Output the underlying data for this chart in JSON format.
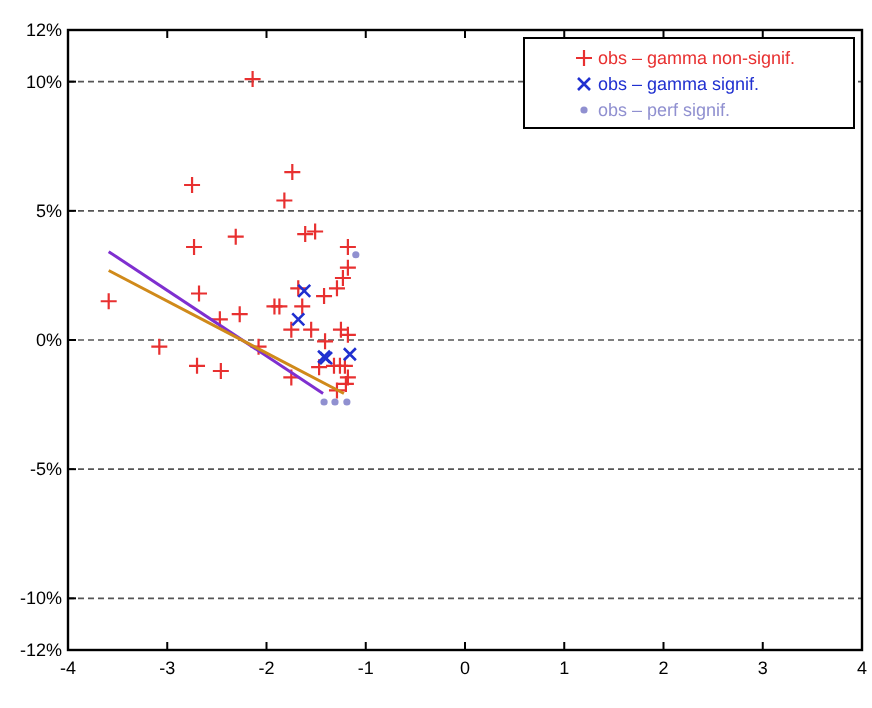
{
  "chart_data": {
    "type": "scatter",
    "xlim": [
      -4,
      4
    ],
    "xticks": [
      -4,
      -3,
      -2,
      -1,
      0,
      1,
      2,
      3,
      4
    ],
    "ylim": [
      -12,
      12
    ],
    "yticks": [
      {
        "value": -12,
        "label": "-12%"
      },
      {
        "value": -10,
        "label": "-10%"
      },
      {
        "value": -5,
        "label": "-5%"
      },
      {
        "value": 0,
        "label": "0%"
      },
      {
        "value": 5,
        "label": "5%"
      },
      {
        "value": 10,
        "label": "10%"
      },
      {
        "value": 12,
        "label": "12%"
      }
    ],
    "grid": "y",
    "legend": "top right",
    "series": [
      {
        "name": "obs – gamma non-signif.",
        "color": "#e83030",
        "marker": "cross",
        "x": [
          -2.14,
          -2.75,
          -1.74,
          -1.82,
          -2.31,
          -1.61,
          -1.51,
          -2.73,
          -1.18,
          -1.18,
          -1.23,
          -2.68,
          -1.68,
          -1.29,
          -1.42,
          -3.59,
          -1.92,
          -1.87,
          -1.64,
          -2.27,
          -2.47,
          -1.75,
          -1.55,
          -1.25,
          -1.18,
          -1.41,
          -3.08,
          -2.08,
          -2.7,
          -2.46,
          -1.47,
          -1.32,
          -1.26,
          -1.21,
          -1.75,
          -1.18,
          -1.2,
          -1.29
        ],
        "values": [
          10.1,
          6.0,
          6.5,
          5.4,
          4.0,
          4.1,
          4.2,
          3.6,
          3.6,
          2.8,
          2.4,
          1.8,
          2.0,
          2.0,
          1.7,
          1.5,
          1.3,
          1.3,
          1.3,
          1.0,
          0.8,
          0.4,
          0.4,
          0.4,
          0.2,
          -0.05,
          -0.26,
          -0.26,
          -1.0,
          -1.2,
          -1.05,
          -1.0,
          -1.0,
          -1.0,
          -1.45,
          -1.45,
          -1.7,
          -1.95
        ]
      },
      {
        "name": "obs – gamma signif.",
        "color": "#2030d0",
        "marker": "x",
        "x": [
          -1.62,
          -1.68,
          -1.42,
          -1.4,
          -1.16
        ],
        "values": [
          1.9,
          0.8,
          -0.65,
          -0.7,
          -0.55
        ]
      },
      {
        "name": "obs – perf signif.",
        "color": "#9090d0",
        "marker": "circle",
        "x": [
          -1.1,
          -1.42,
          -1.31,
          -1.19
        ],
        "values": [
          3.3,
          -2.4,
          -2.4,
          -2.4
        ]
      },
      {
        "type": "line",
        "color": "#7f2fd0",
        "marker": "none",
        "x": [
          -3.59,
          -1.43
        ],
        "values": [
          3.42,
          -2.07
        ]
      },
      {
        "type": "line",
        "color": "#d08a1a",
        "marker": "none",
        "x": [
          -3.59,
          -1.22
        ],
        "values": [
          2.69,
          -2.07
        ]
      }
    ]
  }
}
